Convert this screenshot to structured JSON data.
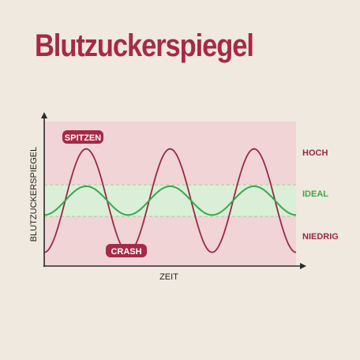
{
  "title": "Blutzuckerspiegel",
  "colors": {
    "background": "#efe9df",
    "plot_bg": "#f0d4d6",
    "ideal_band": "#daeed8",
    "title": "#a52a46",
    "spike_curve": "#9a2847",
    "ideal_curve": "#3aa84a",
    "axis": "#2b2b2b",
    "label_bg": "#a52a46",
    "label_text": "#ffffff"
  },
  "chart_data": {
    "type": "line",
    "xlabel": "ZEIT",
    "ylabel": "BLUTZUCKERSPIEGEL",
    "levels": [
      "HOCH",
      "IDEAL",
      "NIEDRIG"
    ],
    "grid": false,
    "annotations": {
      "peak": "SPITZEN",
      "trough": "CRASH"
    },
    "x_range": [
      0,
      3
    ],
    "y_range": [
      0,
      10
    ],
    "series": [
      {
        "key": "spikes",
        "color": "#9a2847",
        "cycles": 3,
        "center": 4.5,
        "amplitude": 3.6
      },
      {
        "key": "ideal",
        "color": "#3aa84a",
        "cycles": 3,
        "center": 4.5,
        "amplitude": 1.0
      }
    ],
    "ideal_band": [
      3.4,
      5.6
    ]
  }
}
